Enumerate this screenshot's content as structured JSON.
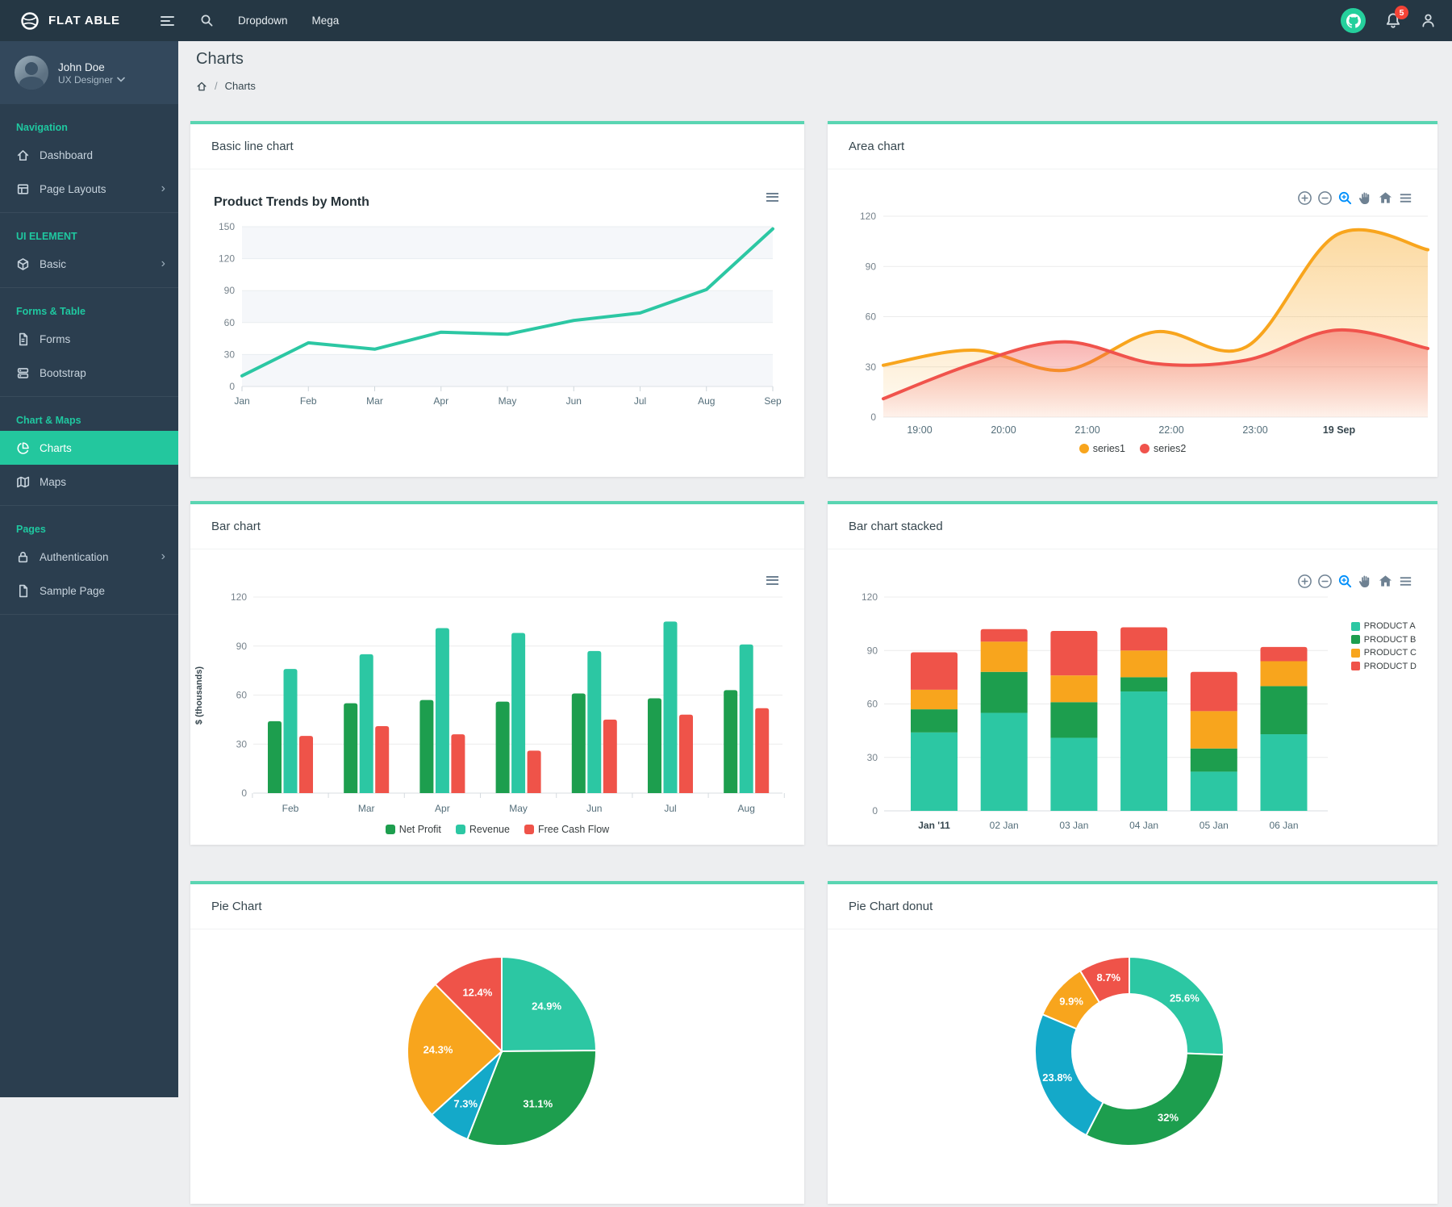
{
  "navbar": {
    "brand": "FLAT ABLE",
    "links": [
      {
        "label": "Dropdown"
      },
      {
        "label": "Mega"
      }
    ],
    "notification_count": "5"
  },
  "user": {
    "name": "John Doe",
    "role": "UX Designer"
  },
  "sidebar": {
    "sections": [
      {
        "label": "Navigation",
        "items": [
          {
            "label": "Dashboard"
          },
          {
            "label": "Page Layouts"
          }
        ]
      },
      {
        "label": "UI ELEMENT",
        "items": [
          {
            "label": "Basic"
          }
        ]
      },
      {
        "label": "Forms & Table",
        "items": [
          {
            "label": "Forms"
          },
          {
            "label": "Bootstrap"
          }
        ]
      },
      {
        "label": "Chart & Maps",
        "items": [
          {
            "label": "Charts"
          },
          {
            "label": "Maps"
          }
        ]
      },
      {
        "label": "Pages",
        "items": [
          {
            "label": "Authentication"
          },
          {
            "label": "Sample Page"
          }
        ]
      }
    ]
  },
  "page": {
    "title": "Charts",
    "separator": "/",
    "breadcrumb_current": "Charts"
  },
  "cards": {
    "line": "Basic line chart",
    "area": "Area chart",
    "bar": "Bar chart",
    "stacked": "Bar chart stacked",
    "pie": "Pie Chart",
    "donut": "Pie Chart donut"
  },
  "colors": {
    "teal": "#2cc7a3",
    "green": "#1d9e4e",
    "orange": "#f8a51d",
    "red": "#ef5349",
    "cyan": "#14a9c9",
    "accent": "#23c79e",
    "toolbar": "#6e8192",
    "toolbar_active": "#008ffb"
  },
  "chart_data": [
    {
      "id": "line",
      "type": "line",
      "title": "Product Trends by Month",
      "categories": [
        "Jan",
        "Feb",
        "Mar",
        "Apr",
        "May",
        "Jun",
        "Jul",
        "Aug",
        "Sep"
      ],
      "values": [
        10,
        41,
        35,
        51,
        49,
        62,
        69,
        91,
        148
      ],
      "ylim": [
        0,
        150
      ],
      "yticks": [
        150,
        120,
        90,
        60,
        30,
        0
      ],
      "grid": "striped-rows",
      "color": "#2cc7a3"
    },
    {
      "id": "area",
      "type": "area",
      "x_labels": [
        "19:00",
        "20:00",
        "21:00",
        "22:00",
        "23:00",
        "19 Sep"
      ],
      "series": [
        {
          "name": "series1",
          "color": "#f8a51d",
          "values": [
            31,
            40,
            28,
            51,
            42,
            109,
            100
          ]
        },
        {
          "name": "series2",
          "color": "#f0534c",
          "values": [
            11,
            32,
            45,
            32,
            34,
            52,
            41
          ]
        }
      ],
      "ylim": [
        0,
        120
      ],
      "yticks": [
        120,
        90,
        60,
        30,
        0
      ],
      "legend_position": "bottom",
      "toolbar": [
        "zoom-in",
        "zoom-out",
        "selection-zoom",
        "pan",
        "home",
        "menu"
      ]
    },
    {
      "id": "bar",
      "type": "bar",
      "categories": [
        "Feb",
        "Mar",
        "Apr",
        "May",
        "Jun",
        "Jul",
        "Aug"
      ],
      "series": [
        {
          "name": "Net Profit",
          "color": "#1d9e4e",
          "values": [
            44,
            55,
            57,
            56,
            61,
            58,
            63
          ]
        },
        {
          "name": "Revenue",
          "color": "#2cc7a3",
          "values": [
            76,
            85,
            101,
            98,
            87,
            105,
            91
          ]
        },
        {
          "name": "Free Cash Flow",
          "color": "#ef5349",
          "values": [
            35,
            41,
            36,
            26,
            45,
            48,
            52
          ]
        }
      ],
      "ylabel": "$ (thousands)",
      "ylim": [
        0,
        120
      ],
      "yticks": [
        120,
        90,
        60,
        30,
        0
      ],
      "legend_position": "bottom"
    },
    {
      "id": "stacked",
      "type": "bar",
      "stacked": true,
      "categories": [
        "Jan '11",
        "02 Jan",
        "03 Jan",
        "04 Jan",
        "05 Jan",
        "06 Jan"
      ],
      "series": [
        {
          "name": "PRODUCT A",
          "color": "#2cc7a3",
          "values": [
            44,
            55,
            41,
            67,
            22,
            43
          ]
        },
        {
          "name": "PRODUCT B",
          "color": "#1d9e4e",
          "values": [
            13,
            23,
            20,
            8,
            13,
            27
          ]
        },
        {
          "name": "PRODUCT C",
          "color": "#f8a51d",
          "values": [
            11,
            17,
            15,
            15,
            21,
            14
          ]
        },
        {
          "name": "PRODUCT D",
          "color": "#ef5349",
          "values": [
            21,
            7,
            25,
            13,
            22,
            8
          ]
        }
      ],
      "ylim": [
        0,
        120
      ],
      "yticks": [
        120,
        90,
        60,
        30,
        0
      ],
      "legend_position": "right",
      "toolbar": [
        "zoom-in",
        "zoom-out",
        "selection-zoom",
        "pan",
        "home",
        "menu"
      ]
    },
    {
      "id": "pie",
      "type": "pie",
      "values": [
        44,
        55,
        13,
        43,
        22
      ],
      "percent_labels": [
        "24.9%",
        "31.1%",
        "7.3%",
        "24.3%",
        "12.4%"
      ],
      "slice_colors": [
        "#2cc7a3",
        "#1d9e4e",
        "#14a9c9",
        "#f8a51d",
        "#ef5349"
      ]
    },
    {
      "id": "donut",
      "type": "pie",
      "donut": true,
      "values": [
        44,
        55,
        41,
        17,
        15
      ],
      "percent_labels": [
        "25.6%",
        "32%",
        "23.8%",
        "9.9%",
        "8.7%"
      ],
      "slice_colors": [
        "#2cc7a3",
        "#1d9e4e",
        "#14a9c9",
        "#f8a51d",
        "#ef5349"
      ]
    }
  ]
}
